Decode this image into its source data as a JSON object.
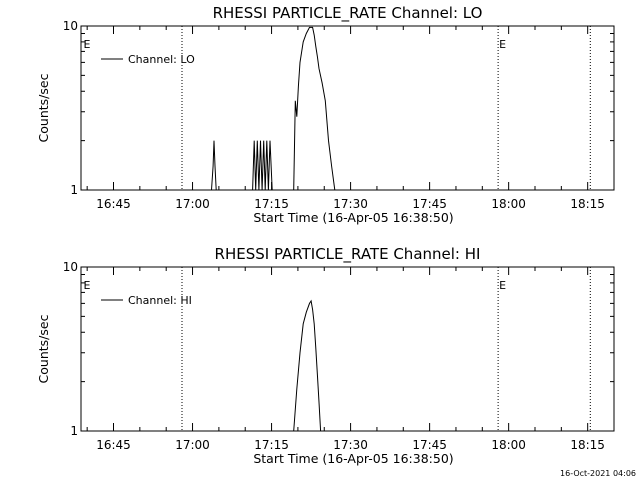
{
  "footer": {
    "timestamp": "16-Oct-2021 04:06"
  },
  "chart_data": [
    {
      "type": "line",
      "title": "RHESSI PARTICLE_RATE Channel: LO",
      "xlabel": "Start Time (16-Apr-05 16:38:50)",
      "ylabel": "Counts/sec",
      "yscale": "log",
      "ylim": [
        1,
        10
      ],
      "xlim": [
        16.6472,
        18.3333
      ],
      "y_ticks": [
        "1",
        "10"
      ],
      "x_ticks": [
        {
          "t": 16.75,
          "label": "16:45"
        },
        {
          "t": 17.0,
          "label": "17:00"
        },
        {
          "t": 17.25,
          "label": "17:15"
        },
        {
          "t": 17.5,
          "label": "17:30"
        },
        {
          "t": 17.75,
          "label": "17:45"
        },
        {
          "t": 18.0,
          "label": "18:00"
        },
        {
          "t": 18.25,
          "label": "18:15"
        }
      ],
      "vlines": [
        16.9667,
        17.9667,
        18.2583
      ],
      "markers": [
        {
          "t": 16.655,
          "label": "E"
        },
        {
          "t": 17.97,
          "label": "E"
        }
      ],
      "legend": {
        "label": "Channel: LO",
        "position": "top-left"
      },
      "series": [
        {
          "name": "Channel: LO",
          "points": [
            [
              17.06,
              1
            ],
            [
              17.065,
              1.4
            ],
            [
              17.068,
              2.0
            ],
            [
              17.071,
              1.4
            ],
            [
              17.075,
              1
            ],
            [
              17.19,
              1
            ],
            [
              17.195,
              2.0
            ],
            [
              17.2,
              1
            ],
            [
              17.205,
              2.0
            ],
            [
              17.21,
              1
            ],
            [
              17.215,
              2.0
            ],
            [
              17.22,
              1
            ],
            [
              17.225,
              2.0
            ],
            [
              17.23,
              1
            ],
            [
              17.235,
              2.0
            ],
            [
              17.24,
              1
            ],
            [
              17.245,
              2.0
            ],
            [
              17.252,
              1
            ],
            [
              17.32,
              1
            ],
            [
              17.325,
              3.5
            ],
            [
              17.33,
              2.8
            ],
            [
              17.335,
              4.3
            ],
            [
              17.34,
              6.0
            ],
            [
              17.35,
              8.0
            ],
            [
              17.36,
              9.0
            ],
            [
              17.37,
              9.8
            ],
            [
              17.38,
              9.8
            ],
            [
              17.385,
              8.8
            ],
            [
              17.39,
              7.5
            ],
            [
              17.395,
              6.5
            ],
            [
              17.4,
              5.5
            ],
            [
              17.41,
              4.5
            ],
            [
              17.42,
              3.5
            ],
            [
              17.43,
              2.0
            ],
            [
              17.44,
              1.4
            ],
            [
              17.45,
              1
            ]
          ]
        }
      ]
    },
    {
      "type": "line",
      "title": "RHESSI PARTICLE_RATE Channel: HI",
      "xlabel": "Start Time (16-Apr-05 16:38:50)",
      "ylabel": "Counts/sec",
      "yscale": "log",
      "ylim": [
        1,
        10
      ],
      "xlim": [
        16.6472,
        18.3333
      ],
      "y_ticks": [
        "1",
        "10"
      ],
      "x_ticks": [
        {
          "t": 16.75,
          "label": "16:45"
        },
        {
          "t": 17.0,
          "label": "17:00"
        },
        {
          "t": 17.25,
          "label": "17:15"
        },
        {
          "t": 17.5,
          "label": "17:30"
        },
        {
          "t": 17.75,
          "label": "17:45"
        },
        {
          "t": 18.0,
          "label": "18:00"
        },
        {
          "t": 18.25,
          "label": "18:15"
        }
      ],
      "vlines": [
        16.9667,
        17.9667,
        18.2583
      ],
      "markers": [
        {
          "t": 16.655,
          "label": "E"
        },
        {
          "t": 17.97,
          "label": "E"
        }
      ],
      "legend": {
        "label": "Channel: HI",
        "position": "top-left"
      },
      "series": [
        {
          "name": "Channel: HI",
          "points": [
            [
              17.32,
              1
            ],
            [
              17.33,
              1.8
            ],
            [
              17.34,
              3.0
            ],
            [
              17.35,
              4.5
            ],
            [
              17.36,
              5.3
            ],
            [
              17.37,
              6.0
            ],
            [
              17.375,
              6.2
            ],
            [
              17.38,
              5.5
            ],
            [
              17.385,
              4.5
            ],
            [
              17.39,
              3.2
            ],
            [
              17.395,
              2.2
            ],
            [
              17.4,
              1.5
            ],
            [
              17.405,
              1
            ]
          ]
        }
      ]
    }
  ]
}
